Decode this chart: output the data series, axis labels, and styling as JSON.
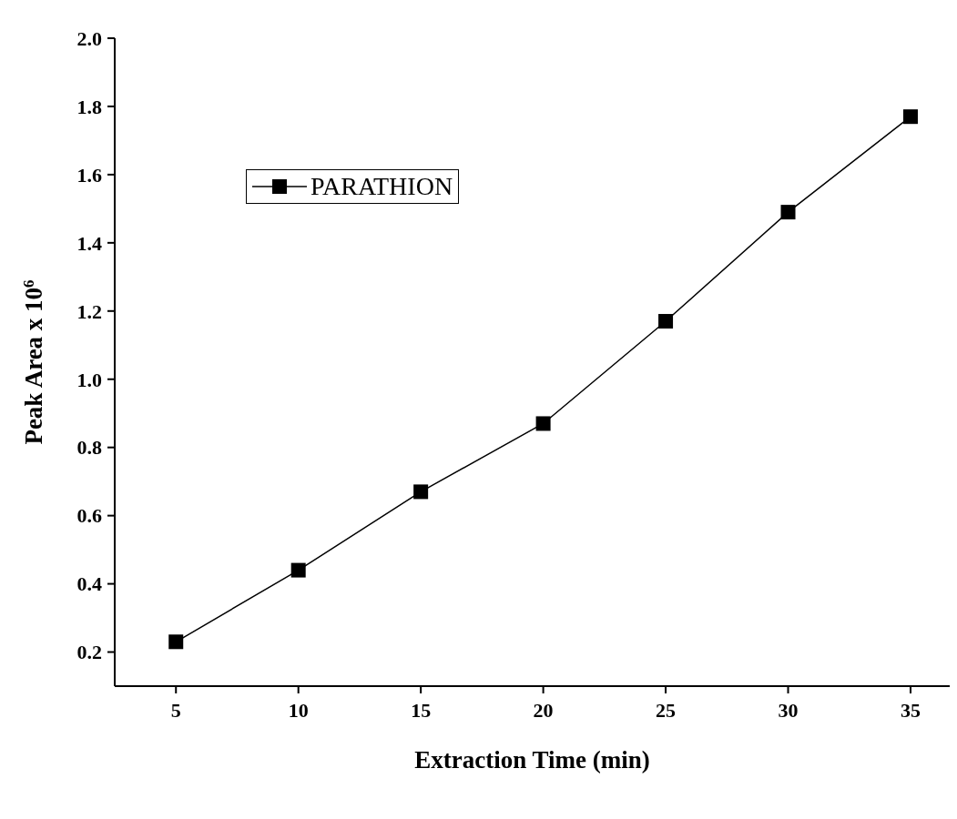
{
  "chart_data": {
    "type": "line",
    "xlabel": "Extraction Time (min)",
    "ylabel": "Peak Area x 10$^{6}$",
    "x": [
      5,
      10,
      15,
      20,
      25,
      30,
      35
    ],
    "series": [
      {
        "name": "PARATHION",
        "color": "#000000",
        "values": [
          0.23,
          0.44,
          0.67,
          0.87,
          1.17,
          1.49,
          1.77
        ]
      }
    ],
    "xlim": [
      2.5,
      36.6
    ],
    "xticks": [
      5,
      10,
      15,
      20,
      25,
      30,
      35
    ],
    "ylim": [
      0.1,
      2.0
    ],
    "yticks": [
      0.2,
      0.4,
      0.6,
      0.8,
      {
        "value": 1,
        "label": "1.0"
      },
      1.2,
      1.4,
      1.6,
      1.8,
      {
        "value": 2,
        "label": "2.0"
      }
    ],
    "grid": false,
    "legend": "top left",
    "marker": "square",
    "line_style": "solid"
  }
}
